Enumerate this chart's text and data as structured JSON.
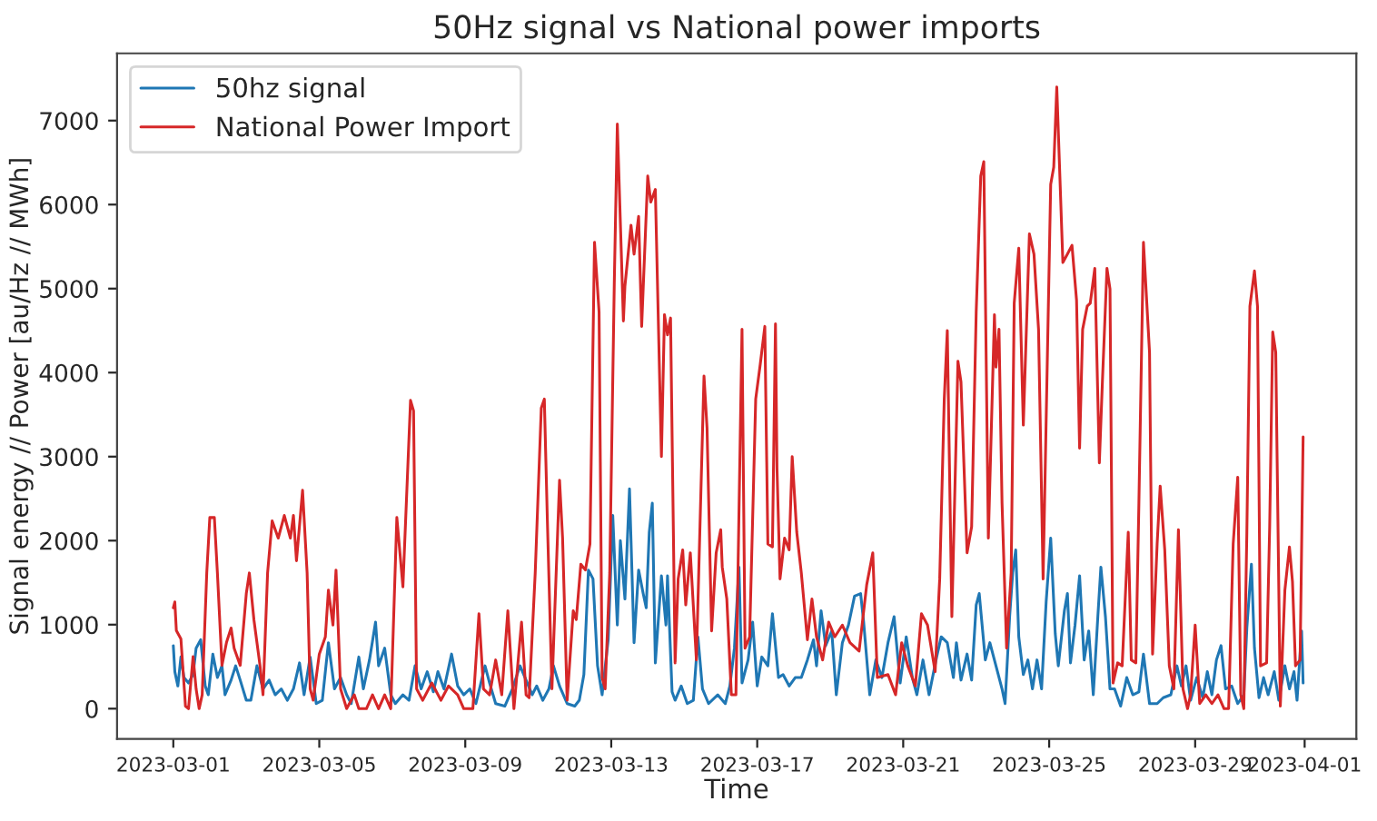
{
  "chart_data": {
    "type": "line",
    "title": "50Hz signal vs National power imports",
    "xlabel": "Time",
    "ylabel": "Signal energy // Power [au/Hz // MWh]",
    "xlim": [
      "2023-02-27T11:00",
      "2023-04-02T10:00"
    ],
    "xticks": [
      {
        "value": "2023-03-01",
        "label": "2023-03-01"
      },
      {
        "value": "2023-03-05",
        "label": "2023-03-05"
      },
      {
        "value": "2023-03-09",
        "label": "2023-03-09"
      },
      {
        "value": "2023-03-13",
        "label": "2023-03-13"
      },
      {
        "value": "2023-03-17",
        "label": "2023-03-17"
      },
      {
        "value": "2023-03-21",
        "label": "2023-03-21"
      },
      {
        "value": "2023-03-25",
        "label": "2023-03-25"
      },
      {
        "value": "2023-03-29",
        "label": "2023-03-29"
      },
      {
        "value": "2023-04-01",
        "label": "2023-04-01"
      }
    ],
    "ylim": [
      -360,
      7800
    ],
    "yticks": [
      0,
      1000,
      2000,
      3000,
      4000,
      5000,
      6000,
      7000
    ],
    "grid": false,
    "legend": "top left",
    "marker": "none",
    "line_style": "solid",
    "series": [
      {
        "name": "50hz signal",
        "color": "#1f77b4",
        "x": [
          "2023-03-01T00:00",
          "2023-03-01T01:00",
          "2023-03-01T03:00",
          "2023-03-01T05:00",
          "2023-03-01T07:00",
          "2023-03-01T10:00",
          "2023-03-01T13:00",
          "2023-03-01T15:00",
          "2023-03-01T18:00",
          "2023-03-01T21:00",
          "2023-03-01T23:00",
          "2023-03-02T02:00",
          "2023-03-02T05:00",
          "2023-03-02T08:00",
          "2023-03-02T10:00",
          "2023-03-02T14:00",
          "2023-03-02T17:00",
          "2023-03-02T20:00",
          "2023-03-03T00:00",
          "2023-03-03T03:00",
          "2023-03-03T07:00",
          "2023-03-03T11:00",
          "2023-03-03T15:00",
          "2023-03-03T19:00",
          "2023-03-03T23:00",
          "2023-03-04T03:00",
          "2023-03-04T07:00",
          "2023-03-04T11:00",
          "2023-03-04T14:00",
          "2023-03-04T18:00",
          "2023-03-04T22:00",
          "2023-03-05T02:00",
          "2023-03-05T06:00",
          "2023-03-05T10:00",
          "2023-03-05T14:00",
          "2023-03-05T18:00",
          "2023-03-05T21:00",
          "2023-03-06T02:00",
          "2023-03-06T05:00",
          "2023-03-06T09:00",
          "2023-03-06T13:00",
          "2023-03-06T15:00",
          "2023-03-06T19:00",
          "2023-03-06T23:00",
          "2023-03-07T02:00",
          "2023-03-07T07:00",
          "2023-03-07T11:00",
          "2023-03-07T15:00",
          "2023-03-07T19:00",
          "2023-03-07T23:00",
          "2023-03-08T03:00",
          "2023-03-08T06:00",
          "2023-03-08T10:00",
          "2023-03-08T15:00",
          "2023-03-08T19:00",
          "2023-03-08T23:00",
          "2023-03-09T03:00",
          "2023-03-09T07:00",
          "2023-03-09T13:00",
          "2023-03-09T16:00",
          "2023-03-09T20:00",
          "2023-03-10T02:00",
          "2023-03-10T07:00",
          "2023-03-10T12:00",
          "2023-03-10T16:00",
          "2023-03-10T20:00",
          "2023-03-10T23:00",
          "2023-03-11T03:00",
          "2023-03-11T07:00",
          "2023-03-11T10:00",
          "2023-03-11T14:00",
          "2023-03-11T19:00",
          "2023-03-12T00:00",
          "2023-03-12T03:00",
          "2023-03-12T06:00",
          "2023-03-12T09:00",
          "2023-03-12T12:00",
          "2023-03-12T15:00",
          "2023-03-12T18:00",
          "2023-03-12T22:00",
          "2023-03-13T01:00",
          "2023-03-13T04:00",
          "2023-03-13T06:00",
          "2023-03-13T09:00",
          "2023-03-13T12:00",
          "2023-03-13T15:00",
          "2023-03-13T18:00",
          "2023-03-13T21:00",
          "2023-03-13T23:00",
          "2023-03-14T01:00",
          "2023-03-14T03:00",
          "2023-03-14T05:00",
          "2023-03-14T09:00",
          "2023-03-14T12:00",
          "2023-03-14T13:00",
          "2023-03-14T16:00",
          "2023-03-14T18:00",
          "2023-03-14T22:00",
          "2023-03-15T02:00",
          "2023-03-15T06:00",
          "2023-03-15T09:00",
          "2023-03-15T12:00",
          "2023-03-15T16:00",
          "2023-03-15T22:00",
          "2023-03-16T03:00",
          "2023-03-16T06:00",
          "2023-03-16T09:00",
          "2023-03-16T12:00",
          "2023-03-16T14:00",
          "2023-03-16T18:00",
          "2023-03-16T21:00",
          "2023-03-17T00:00",
          "2023-03-17T03:00",
          "2023-03-17T07:00",
          "2023-03-17T10:00",
          "2023-03-17T14:00",
          "2023-03-17T17:00",
          "2023-03-17T21:00",
          "2023-03-18T01:00",
          "2023-03-18T05:00",
          "2023-03-18T09:00",
          "2023-03-18T13:00",
          "2023-03-18T15:00",
          "2023-03-18T18:00",
          "2023-03-18T21:00",
          "2023-03-19T01:00",
          "2023-03-19T04:00",
          "2023-03-19T08:00",
          "2023-03-19T12:00",
          "2023-03-19T16:00",
          "2023-03-19T20:00",
          "2023-03-19T22:00",
          "2023-03-20T02:00",
          "2023-03-20T06:00",
          "2023-03-20T10:00",
          "2023-03-20T14:00",
          "2023-03-20T18:00",
          "2023-03-20T22:00",
          "2023-03-21T02:00",
          "2023-03-21T06:00",
          "2023-03-21T09:00",
          "2023-03-21T13:00",
          "2023-03-21T17:00",
          "2023-03-21T22:00",
          "2023-03-22T01:00",
          "2023-03-22T05:00",
          "2023-03-22T09:00",
          "2023-03-22T11:00",
          "2023-03-22T14:00",
          "2023-03-22T18:00",
          "2023-03-22T21:00",
          "2023-03-23T00:00",
          "2023-03-23T02:00",
          "2023-03-23T06:00",
          "2023-03-23T09:00",
          "2023-03-23T13:00",
          "2023-03-23T17:00",
          "2023-03-23T19:00",
          "2023-03-23T22:00",
          "2023-03-24T00:00",
          "2023-03-24T02:00",
          "2023-03-24T04:00",
          "2023-03-24T07:00",
          "2023-03-24T10:00",
          "2023-03-24T13:00",
          "2023-03-24T16:00",
          "2023-03-24T19:00",
          "2023-03-24T22:00",
          "2023-03-25T01:00",
          "2023-03-25T04:00",
          "2023-03-25T06:00",
          "2023-03-25T10:00",
          "2023-03-25T12:00",
          "2023-03-25T14:00",
          "2023-03-25T17:00",
          "2023-03-25T20:00",
          "2023-03-25T23:00",
          "2023-03-26T02:00",
          "2023-03-26T05:00",
          "2023-03-26T08:00",
          "2023-03-26T10:00",
          "2023-03-26T13:00",
          "2023-03-26T16:00",
          "2023-03-26T19:00",
          "2023-03-26T23:00",
          "2023-03-27T03:00",
          "2023-03-27T07:00",
          "2023-03-27T11:00",
          "2023-03-27T14:00",
          "2023-03-27T18:00",
          "2023-03-27T23:00",
          "2023-03-28T03:00",
          "2023-03-28T08:00",
          "2023-03-28T12:00",
          "2023-03-28T15:00",
          "2023-03-28T18:00",
          "2023-03-28T21:00",
          "2023-03-29T01:00",
          "2023-03-29T05:00",
          "2023-03-29T08:00",
          "2023-03-29T11:00",
          "2023-03-29T14:00",
          "2023-03-29T17:00",
          "2023-03-29T20:00",
          "2023-03-30T00:00",
          "2023-03-30T04:00",
          "2023-03-30T08:00",
          "2023-03-30T10:00",
          "2023-03-30T13:00",
          "2023-03-30T15:00",
          "2023-03-30T18:00",
          "2023-03-30T21:00",
          "2023-03-31T00:00",
          "2023-03-31T04:00",
          "2023-03-31T07:00",
          "2023-03-31T11:00",
          "2023-03-31T14:00",
          "2023-03-31T17:00",
          "2023-03-31T19:00",
          "2023-03-31T22:00",
          "2023-03-31T23:00"
        ],
        "values": [
          750,
          440,
          270,
          615,
          370,
          305,
          405,
          720,
          820,
          270,
          165,
          650,
          370,
          510,
          165,
          340,
          510,
          340,
          100,
          100,
          510,
          235,
          340,
          165,
          235,
          100,
          235,
          545,
          165,
          615,
          60,
          100,
          785,
          235,
          370,
          165,
          60,
          615,
          235,
          580,
          1030,
          510,
          720,
          165,
          60,
          165,
          100,
          510,
          235,
          440,
          200,
          440,
          235,
          650,
          270,
          165,
          235,
          60,
          510,
          305,
          60,
          30,
          235,
          510,
          340,
          165,
          270,
          100,
          235,
          510,
          270,
          60,
          30,
          100,
          405,
          1650,
          1545,
          510,
          165,
          820,
          2300,
          995,
          2000,
          1305,
          2615,
          785,
          1650,
          1370,
          1200,
          2100,
          2445,
          545,
          1580,
          995,
          1580,
          200,
          100,
          270,
          60,
          100,
          855,
          235,
          60,
          165,
          60,
          270,
          720,
          1685,
          305,
          580,
          1030,
          270,
          615,
          510,
          1130,
          370,
          405,
          270,
          370,
          370,
          580,
          820,
          510,
          1165,
          750,
          925,
          165,
          785,
          995,
          1340,
          1370,
          1030,
          165,
          580,
          370,
          785,
          1095,
          305,
          855,
          370,
          165,
          580,
          165,
          615,
          855,
          785,
          370,
          785,
          340,
          650,
          340,
          1235,
          1370,
          580,
          785,
          510,
          235,
          60,
          1095,
          1615,
          1890,
          855,
          405,
          580,
          235,
          580,
          235,
          1270,
          2030,
          890,
          510,
          1165,
          1370,
          545,
          995,
          1580,
          580,
          925,
          165,
          1095,
          1685,
          1095,
          235,
          235,
          30,
          370,
          165,
          200,
          650,
          60,
          60,
          130,
          165,
          510,
          270,
          510,
          100,
          370,
          130,
          440,
          165,
          580,
          750,
          235,
          270,
          60,
          165,
          960,
          1720,
          720,
          130,
          370,
          165,
          440,
          100,
          510,
          235,
          440,
          100,
          925,
          305
        ]
      },
      {
        "name": "National Power Import",
        "color": "#d62728",
        "x": [
          "2023-03-01T00:00",
          "2023-03-01T01:00",
          "2023-03-01T02:00",
          "2023-03-01T05:00",
          "2023-03-01T08:00",
          "2023-03-01T10:00",
          "2023-03-01T13:00",
          "2023-03-01T15:00",
          "2023-03-01T17:00",
          "2023-03-01T19:00",
          "2023-03-01T22:00",
          "2023-03-02T00:00",
          "2023-03-02T03:00",
          "2023-03-02T05:00",
          "2023-03-02T08:00",
          "2023-03-02T11:00",
          "2023-03-02T14:00",
          "2023-03-02T16:00",
          "2023-03-02T20:00",
          "2023-03-03T00:00",
          "2023-03-03T02:00",
          "2023-03-03T05:00",
          "2023-03-03T09:00",
          "2023-03-03T11:00",
          "2023-03-03T14:00",
          "2023-03-03T17:00",
          "2023-03-03T21:00",
          "2023-03-04T01:00",
          "2023-03-04T05:00",
          "2023-03-04T07:00",
          "2023-03-04T09:00",
          "2023-03-04T13:00",
          "2023-03-04T16:00",
          "2023-03-04T18:00",
          "2023-03-04T20:00",
          "2023-03-05T00:00",
          "2023-03-05T04:00",
          "2023-03-05T06:00",
          "2023-03-05T09:00",
          "2023-03-05T11:00",
          "2023-03-05T14:00",
          "2023-03-05T18:00",
          "2023-03-05T23:00",
          "2023-03-06T02:00",
          "2023-03-06T07:00",
          "2023-03-06T11:00",
          "2023-03-06T15:00",
          "2023-03-06T19:00",
          "2023-03-06T23:00",
          "2023-03-07T03:00",
          "2023-03-07T07:00",
          "2023-03-07T12:00",
          "2023-03-07T14:00",
          "2023-03-07T16:00",
          "2023-03-07T20:00",
          "2023-03-08T02:00",
          "2023-03-08T08:00",
          "2023-03-08T13:00",
          "2023-03-08T19:00",
          "2023-03-08T23:00",
          "2023-03-09T05:00",
          "2023-03-09T09:00",
          "2023-03-09T12:00",
          "2023-03-09T16:00",
          "2023-03-09T20:00",
          "2023-03-10T00:00",
          "2023-03-10T04:00",
          "2023-03-10T08:00",
          "2023-03-10T13:00",
          "2023-03-10T16:00",
          "2023-03-10T18:00",
          "2023-03-10T22:00",
          "2023-03-11T02:00",
          "2023-03-11T04:00",
          "2023-03-11T06:00",
          "2023-03-11T09:00",
          "2023-03-11T14:00",
          "2023-03-11T16:00",
          "2023-03-11T19:00",
          "2023-03-11T23:00",
          "2023-03-12T01:00",
          "2023-03-12T04:00",
          "2023-03-12T07:00",
          "2023-03-12T10:00",
          "2023-03-12T13:00",
          "2023-03-12T16:00",
          "2023-03-12T18:00",
          "2023-03-12T20:00",
          "2023-03-12T23:00",
          "2023-03-13T02:00",
          "2023-03-13T04:00",
          "2023-03-13T08:00",
          "2023-03-13T09:00",
          "2023-03-13T13:00",
          "2023-03-13T15:00",
          "2023-03-13T18:00",
          "2023-03-13T20:00",
          "2023-03-14T00:00",
          "2023-03-14T02:00",
          "2023-03-14T05:00",
          "2023-03-14T09:00",
          "2023-03-14T11:00",
          "2023-03-14T13:00",
          "2023-03-14T15:00",
          "2023-03-14T18:00",
          "2023-03-14T20:00",
          "2023-03-14T23:00",
          "2023-03-15T01:00",
          "2023-03-15T04:00",
          "2023-03-15T08:00",
          "2023-03-15T13:00",
          "2023-03-15T15:00",
          "2023-03-15T18:00",
          "2023-03-15T21:00",
          "2023-03-16T00:00",
          "2023-03-16T01:00",
          "2023-03-16T04:00",
          "2023-03-16T07:00",
          "2023-03-16T10:00",
          "2023-03-16T14:00",
          "2023-03-16T16:00",
          "2023-03-16T19:00",
          "2023-03-16T23:00",
          "2023-03-17T02:00",
          "2023-03-17T05:00",
          "2023-03-17T07:00",
          "2023-03-17T10:00",
          "2023-03-17T12:00",
          "2023-03-17T13:00",
          "2023-03-17T15:00",
          "2023-03-17T18:00",
          "2023-03-17T21:00",
          "2023-03-17T23:00",
          "2023-03-18T02:00",
          "2023-03-18T05:00",
          "2023-03-18T09:00",
          "2023-03-18T12:00",
          "2023-03-18T15:00",
          "2023-03-18T19:00",
          "2023-03-18T23:00",
          "2023-03-19T03:00",
          "2023-03-19T08:00",
          "2023-03-19T13:00",
          "2023-03-19T19:00",
          "2023-03-20T00:00",
          "2023-03-20T04:00",
          "2023-03-20T07:00",
          "2023-03-20T14:00",
          "2023-03-20T19:00",
          "2023-03-20T23:00",
          "2023-03-21T03:00",
          "2023-03-21T08:00",
          "2023-03-21T12:00",
          "2023-03-21T16:00",
          "2023-03-21T21:00",
          "2023-03-22T00:00",
          "2023-03-22T03:00",
          "2023-03-22T05:00",
          "2023-03-22T08:00",
          "2023-03-22T12:00",
          "2023-03-22T14:00",
          "2023-03-22T18:00",
          "2023-03-22T21:00",
          "2023-03-23T00:00",
          "2023-03-23T03:00",
          "2023-03-23T05:00",
          "2023-03-23T08:00",
          "2023-03-23T12:00",
          "2023-03-23T13:00",
          "2023-03-23T15:00",
          "2023-03-23T17:00",
          "2023-03-23T20:00",
          "2023-03-23T23:00",
          "2023-03-24T01:00",
          "2023-03-24T04:00",
          "2023-03-24T07:00",
          "2023-03-24T11:00",
          "2023-03-24T14:00",
          "2023-03-24T17:00",
          "2023-03-24T20:00",
          "2023-03-25T01:00",
          "2023-03-25T03:00",
          "2023-03-25T05:00",
          "2023-03-25T09:00",
          "2023-03-25T12:00",
          "2023-03-25T15:00",
          "2023-03-25T18:00",
          "2023-03-25T20:00",
          "2023-03-25T22:00",
          "2023-03-26T01:00",
          "2023-03-26T03:00",
          "2023-03-26T06:00",
          "2023-03-26T09:00",
          "2023-03-26T11:00",
          "2023-03-26T14:00",
          "2023-03-26T16:00",
          "2023-03-26T18:00",
          "2023-03-26T21:00",
          "2023-03-27T00:00",
          "2023-03-27T04:00",
          "2023-03-27T06:00",
          "2023-03-27T09:00",
          "2023-03-27T11:00",
          "2023-03-27T14:00",
          "2023-03-27T18:00",
          "2023-03-27T20:00",
          "2023-03-27T23:00",
          "2023-03-28T01:00",
          "2023-03-28T04:00",
          "2023-03-28T07:00",
          "2023-03-28T10:00",
          "2023-03-28T13:00",
          "2023-03-28T16:00",
          "2023-03-28T19:00",
          "2023-03-28T21:00",
          "2023-03-29T00:00",
          "2023-03-29T03:00",
          "2023-03-29T07:00",
          "2023-03-29T11:00",
          "2023-03-29T15:00",
          "2023-03-29T19:00",
          "2023-03-29T22:00",
          "2023-03-30T01:00",
          "2023-03-30T04:00",
          "2023-03-30T06:00",
          "2023-03-30T08:00",
          "2023-03-30T10:00",
          "2023-03-30T12:00",
          "2023-03-30T15:00",
          "2023-03-30T17:00",
          "2023-03-30T19:00",
          "2023-03-30T23:00",
          "2023-03-31T01:00",
          "2023-03-31T03:00",
          "2023-03-31T05:00",
          "2023-03-31T08:00",
          "2023-03-31T11:00",
          "2023-03-31T14:00",
          "2023-03-31T16:00",
          "2023-03-31T18:00",
          "2023-03-31T21:00",
          "2023-03-31T23:00"
        ],
        "values": [
          1200,
          1270,
          930,
          830,
          30,
          0,
          620,
          235,
          0,
          165,
          1615,
          2275,
          2275,
          1615,
          515,
          790,
          960,
          720,
          515,
          1370,
          1615,
          1060,
          515,
          165,
          1615,
          2235,
          2030,
          2300,
          2030,
          2300,
          1760,
          2600,
          1615,
          235,
          100,
          650,
          855,
          1410,
          995,
          1650,
          235,
          0,
          165,
          0,
          0,
          165,
          0,
          165,
          0,
          2275,
          1450,
          3670,
          3545,
          235,
          100,
          305,
          100,
          270,
          165,
          0,
          0,
          1130,
          235,
          165,
          580,
          165,
          1165,
          0,
          1030,
          165,
          130,
          1615,
          3580,
          3685,
          2235,
          235,
          2720,
          2030,
          100,
          1165,
          1060,
          1720,
          1650,
          1960,
          5550,
          4720,
          370,
          235,
          1615,
          5065,
          6960,
          4615,
          5030,
          5755,
          5410,
          5860,
          4550,
          6340,
          6030,
          6180,
          3000,
          4690,
          4450,
          4650,
          545,
          1545,
          1890,
          1235,
          1855,
          580,
          3960,
          3340,
          925,
          1855,
          2130,
          1685,
          1305,
          165,
          165,
          4515,
          720,
          855,
          3685,
          4100,
          4550,
          1960,
          1925,
          4580,
          2860,
          1545,
          2030,
          1890,
          3000,
          2100,
          1615,
          820,
          1305,
          855,
          580,
          1030,
          855,
          995,
          785,
          685,
          1475,
          1855,
          370,
          405,
          165,
          785,
          510,
          270,
          1130,
          995,
          440,
          1545,
          3685,
          4500,
          1095,
          4135,
          3890,
          1855,
          2165,
          4720,
          6340,
          6510,
          2030,
          4690,
          4065,
          4515,
          2445,
          720,
          1615,
          4825,
          5480,
          3375,
          5650,
          5410,
          4515,
          1545,
          6240,
          6445,
          7400,
          5310,
          5410,
          5515,
          4860,
          3100,
          4515,
          4790,
          4825,
          5240,
          2925,
          3890,
          5240,
          4995,
          305,
          545,
          510,
          2100,
          580,
          545,
          2445,
          5550,
          4240,
          650,
          1960,
          2650,
          1890,
          510,
          235,
          2130,
          235,
          0,
          165,
          995,
          60,
          165,
          60,
          165,
          0,
          0,
          1960,
          2755,
          165,
          0,
          2100,
          4790,
          5210,
          4790,
          510,
          545,
          2165,
          4485,
          4240,
          30,
          1410,
          1925,
          1510,
          510,
          580,
          3235
        ]
      }
    ]
  }
}
